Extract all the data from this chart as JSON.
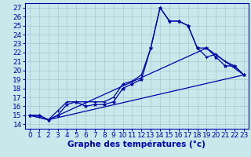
{
  "title": "Graphe des températures (°c)",
  "bg_color": "#c8e8ec",
  "line_color": "#0000aa",
  "grid_color": "#a8c8cc",
  "xlim": [
    -0.5,
    23.5
  ],
  "ylim": [
    13.5,
    27.5
  ],
  "xticks": [
    0,
    1,
    2,
    3,
    4,
    5,
    6,
    7,
    8,
    9,
    10,
    11,
    12,
    13,
    14,
    15,
    16,
    17,
    18,
    19,
    20,
    21,
    22,
    23
  ],
  "yticks": [
    14,
    15,
    16,
    17,
    18,
    19,
    20,
    21,
    22,
    23,
    24,
    25,
    26,
    27
  ],
  "line1_x": [
    0,
    1,
    2,
    3,
    4,
    5,
    6,
    7,
    8,
    9,
    10,
    11,
    12,
    13,
    14,
    15,
    16,
    17,
    18,
    19,
    20,
    21,
    22,
    23
  ],
  "line1_y": [
    15.0,
    15.0,
    14.5,
    15.0,
    16.2,
    16.5,
    16.0,
    16.2,
    16.2,
    16.5,
    18.0,
    18.5,
    19.0,
    22.5,
    27.0,
    25.5,
    25.5,
    25.0,
    22.5,
    22.5,
    21.5,
    20.5,
    20.5,
    19.5
  ],
  "line2_x": [
    0,
    1,
    2,
    3,
    4,
    5,
    6,
    7,
    8,
    9,
    10,
    11,
    12,
    13,
    14,
    15,
    16,
    17,
    18,
    19,
    20,
    21,
    22,
    23
  ],
  "line2_y": [
    15.0,
    15.0,
    14.5,
    15.5,
    16.5,
    16.5,
    16.5,
    16.5,
    16.5,
    17.0,
    18.5,
    18.8,
    19.5,
    22.5,
    27.0,
    25.5,
    25.5,
    25.0,
    22.5,
    21.5,
    21.8,
    21.0,
    20.5,
    19.5
  ],
  "line3_x": [
    0,
    2,
    23
  ],
  "line3_y": [
    15.0,
    14.5,
    19.5
  ],
  "line4_x": [
    0,
    2,
    19,
    23
  ],
  "line4_y": [
    15.0,
    14.5,
    22.5,
    19.5
  ],
  "xlabel_fontsize": 7.5,
  "tick_fontsize": 6.5
}
